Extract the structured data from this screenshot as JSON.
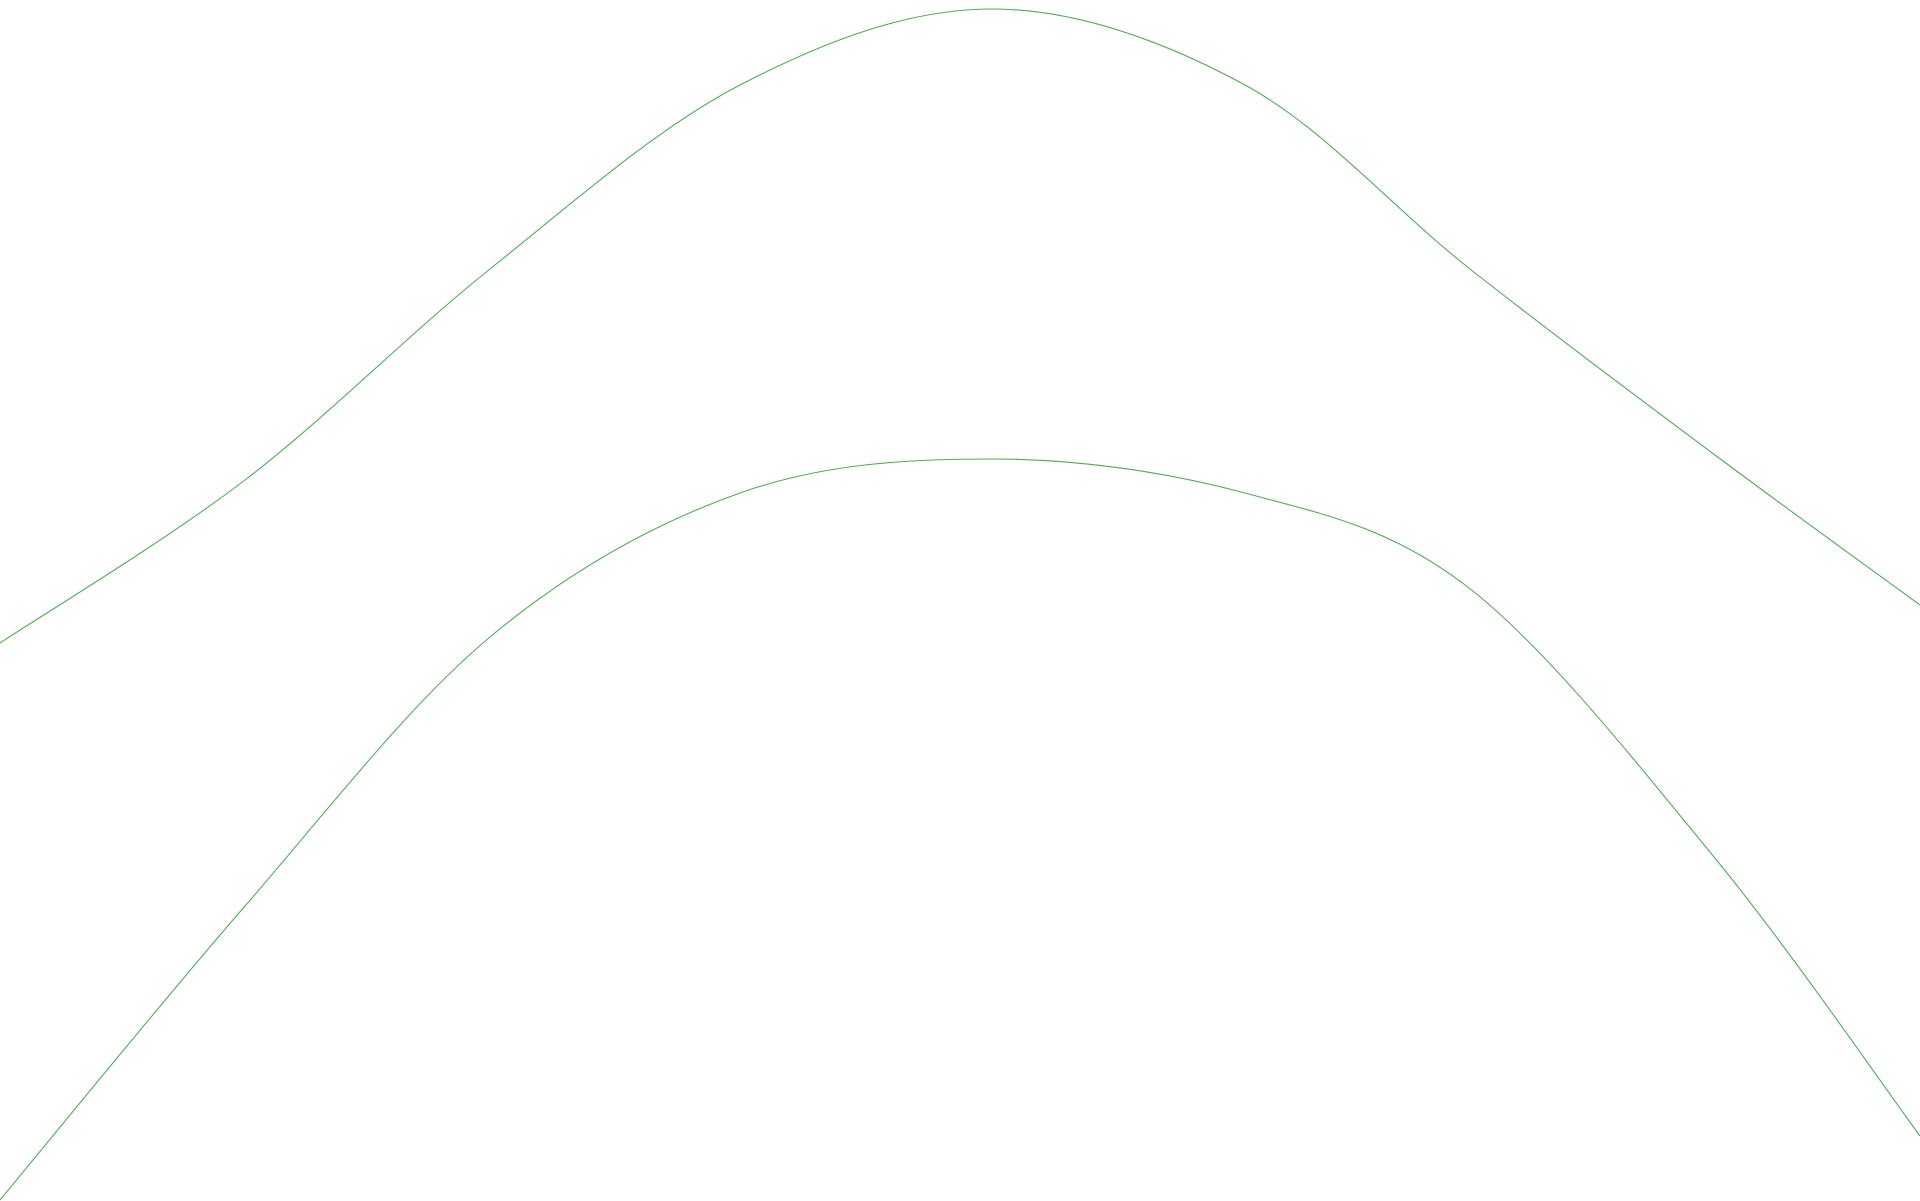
{
  "canvas": {
    "background": "#ffffff"
  },
  "curves": {
    "stroke_color": "#4caf50",
    "count": 2
  }
}
